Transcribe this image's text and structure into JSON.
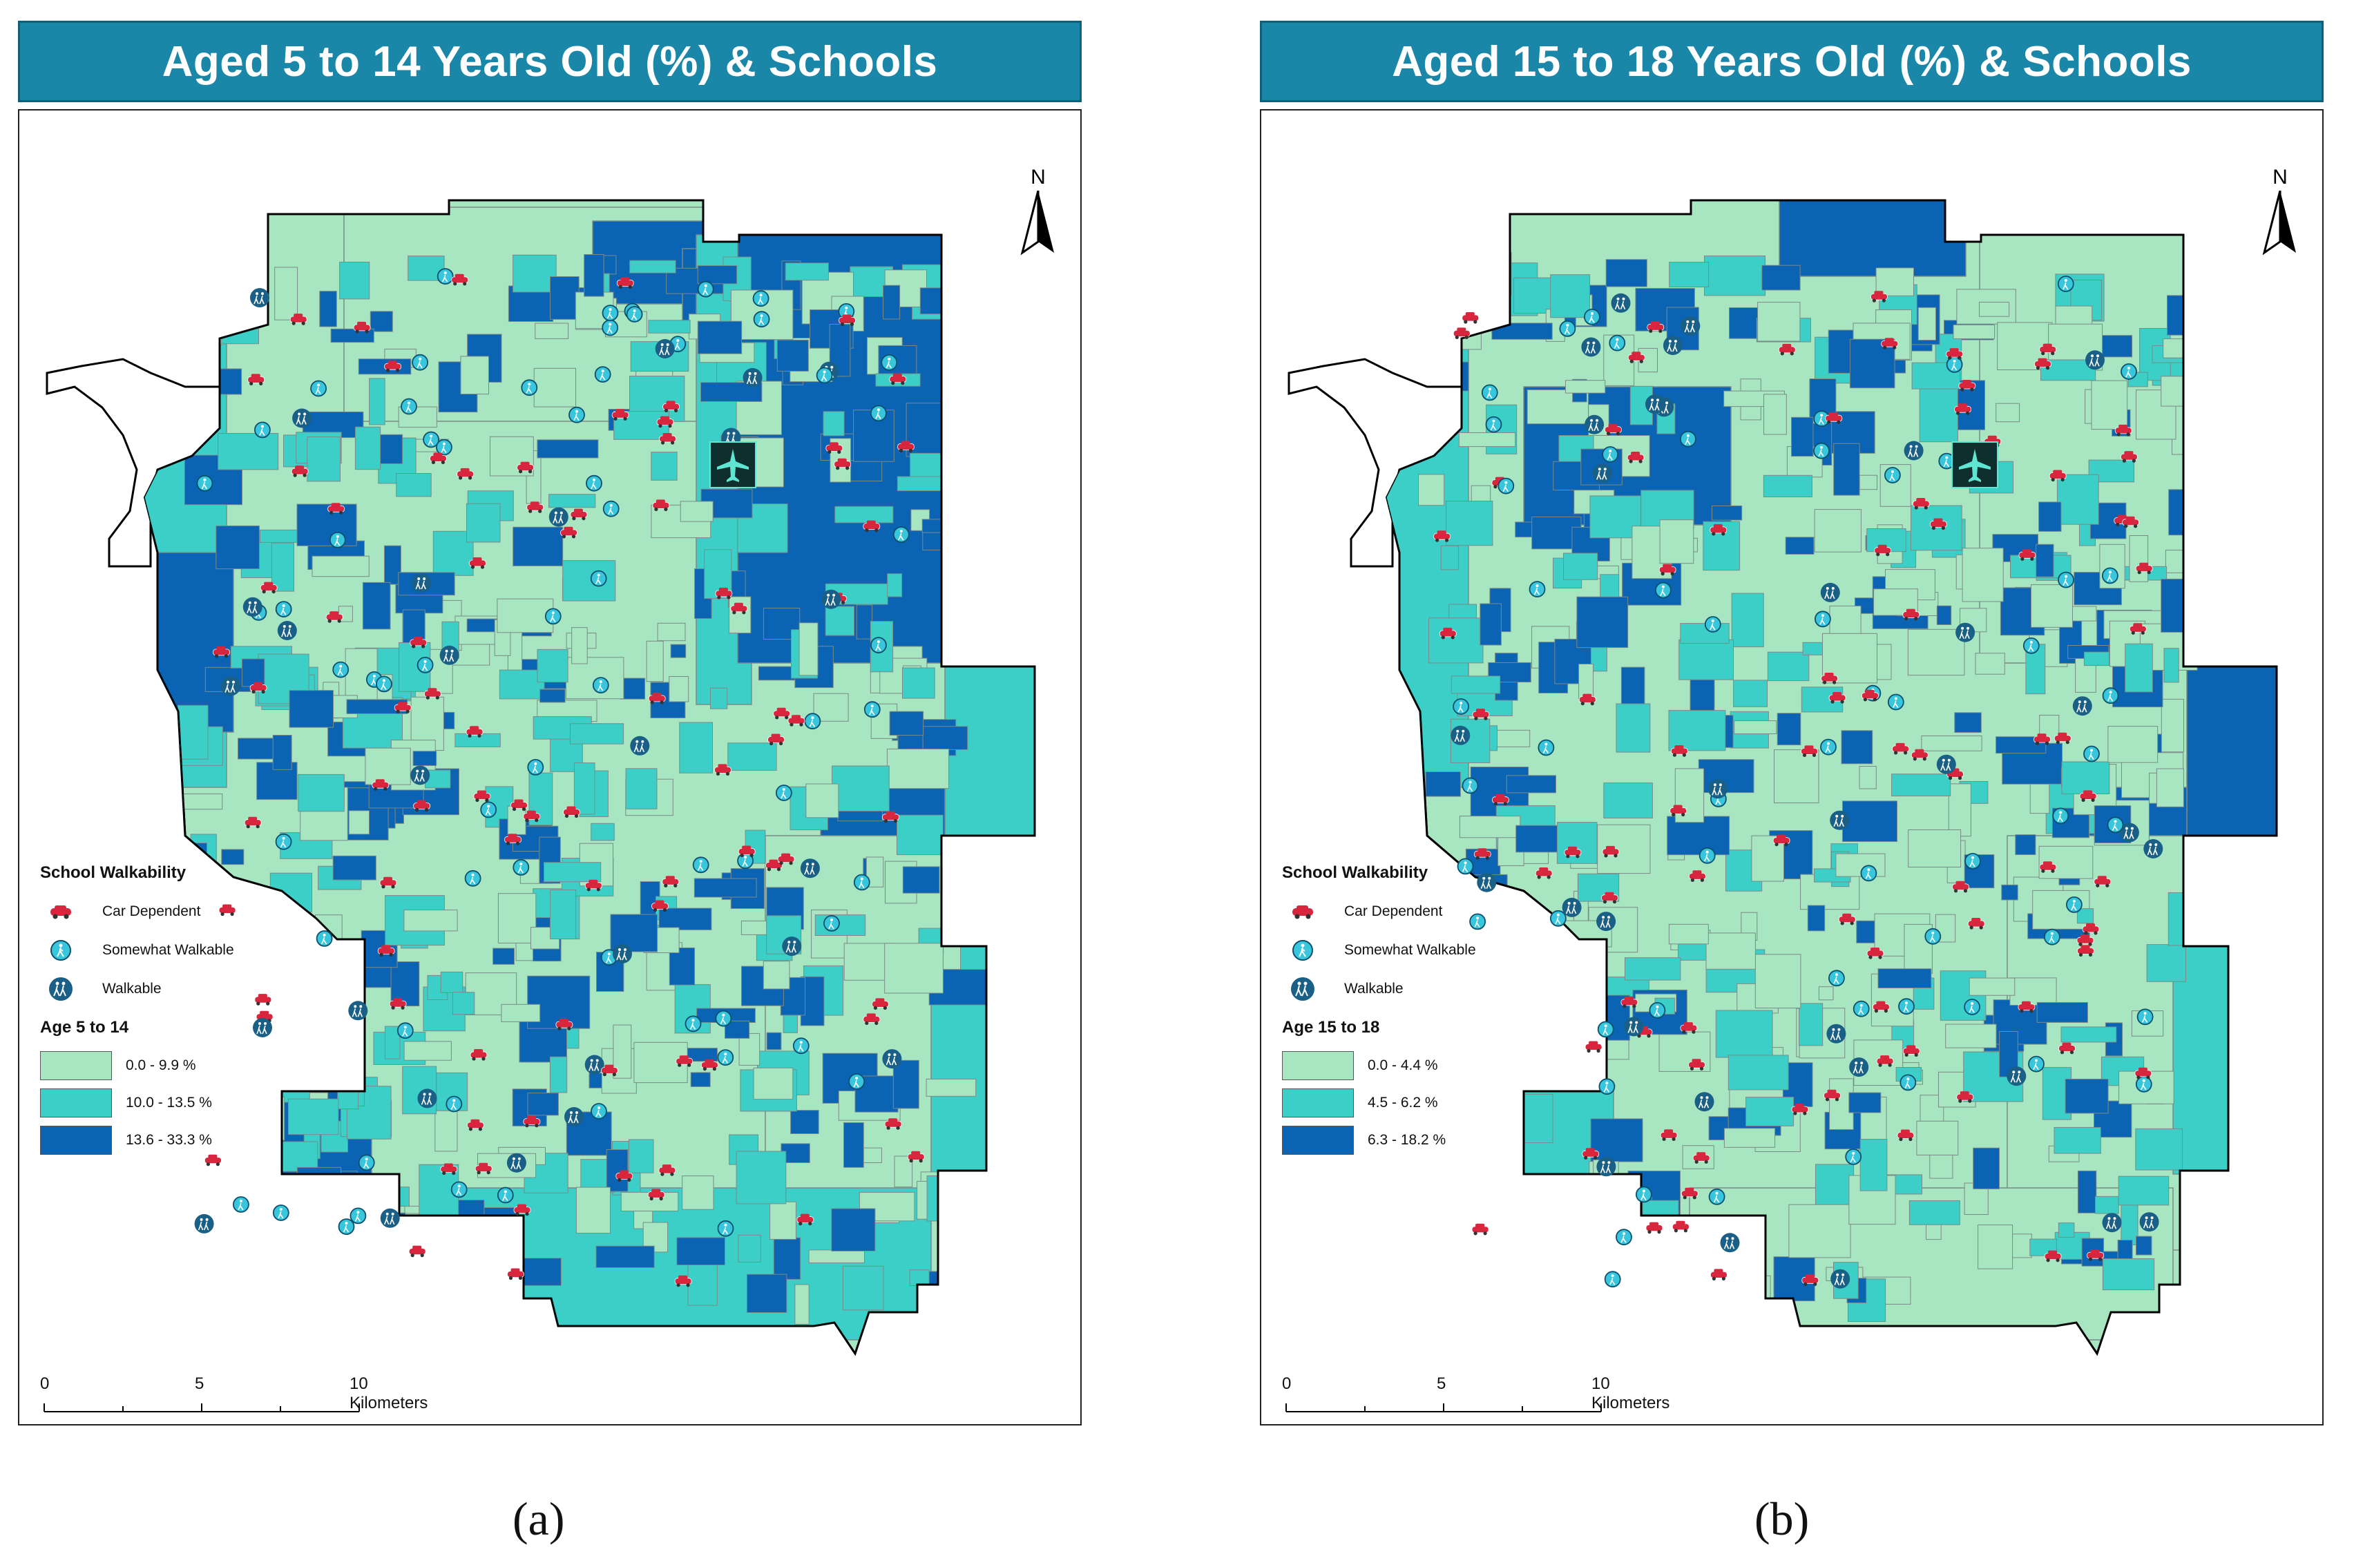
{
  "panels": [
    {
      "id": "a",
      "title": "Aged 5 to 14 Years Old (%) & Schools",
      "caption": "(a)",
      "legend": {
        "school_heading": "School Walkability",
        "school_categories": [
          "Car Dependent",
          "Somewhat Walkable",
          "Walkable"
        ],
        "age_heading": "Age 5 to 14",
        "classes": [
          {
            "label": "0.0 - 9.9 %",
            "color": "#a8e6c2"
          },
          {
            "label": "10.0 - 13.5 %",
            "color": "#3ccfc8"
          },
          {
            "label": "13.6 - 33.3 %",
            "color": "#0b63b3"
          }
        ]
      },
      "scale": {
        "ticks": [
          "0",
          "5",
          "10 Kilometers"
        ]
      },
      "north_label": "N"
    },
    {
      "id": "b",
      "title": "Aged 15 to 18 Years Old (%) & Schools",
      "caption": "(b)",
      "legend": {
        "school_heading": "School Walkability",
        "school_categories": [
          "Car Dependent",
          "Somewhat Walkable",
          "Walkable"
        ],
        "age_heading": "Age 15 to 18",
        "classes": [
          {
            "label": "0.0 - 4.4 %",
            "color": "#a8e6c2"
          },
          {
            "label": "4.5 - 6.2 %",
            "color": "#3ccfc8"
          },
          {
            "label": "6.3 - 18.2 %",
            "color": "#0b63b3"
          }
        ]
      },
      "scale": {
        "ticks": [
          "0",
          "5",
          "10 Kilometers"
        ]
      },
      "north_label": "N"
    }
  ],
  "colors": {
    "title_bg": "#1a86a8",
    "car_dependent": "#d7263d",
    "somewhat_walkable": "#37c6dc",
    "walkable": "#1a5f86",
    "airport": "#0f2e2e",
    "airport_plane": "#5fe6d2"
  },
  "icons": {
    "car_dependent": "car-icon",
    "somewhat_walkable": "pedestrian-icon",
    "walkable": "group-walk-icon",
    "airport": "airplane-icon",
    "north": "north-arrow-icon"
  }
}
